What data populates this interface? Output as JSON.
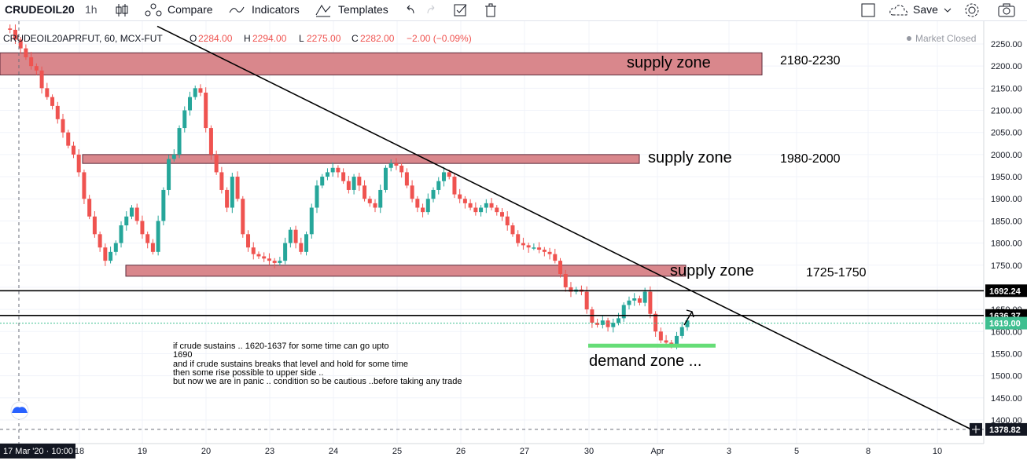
{
  "toolbar": {
    "symbol": "CRUDEOIL20",
    "interval": "1h",
    "compare_label": "Compare",
    "indicators_label": "Indicators",
    "templates_label": "Templates",
    "save_label": "Save"
  },
  "legend": {
    "title": "CRUDEOIL20APRFUT, 60, MCX-FUT",
    "open_label": "O",
    "open": "2284.00",
    "high_label": "H",
    "high": "2294.00",
    "low_label": "L",
    "low": "2275.00",
    "close_label": "C",
    "close": "2282.00",
    "change": "−2.00 (−0.09%)",
    "market_status": "Market Closed"
  },
  "colors": {
    "up": "#26a69a",
    "down": "#ef5350",
    "zone_fill": "#d9878c",
    "zone_stroke": "#5a2a3a",
    "demand": "#66dd77",
    "price_badge": "#3fbf90"
  },
  "annotations": {
    "zone1_label": "supply zone",
    "zone1_range": "2180-2230",
    "zone2_label": "supply zone",
    "zone2_range": "1980-2000",
    "zone3_label": "supply zone",
    "zone3_range": "1725-1750",
    "demand_label": "demand zone ...",
    "note_lines": [
      "if crude sustains .. 1620-1637 for some time can go upto",
      "1690",
      "and if crude sustains breaks that level and hold for some time",
      "then some rise possible to upper side ..",
      "but now we are in panic .. condition so be cautious ..before taking any trade"
    ]
  },
  "crosshair": {
    "date_label": "17 Mar '20 · 10:00",
    "price_label": "1378.82"
  },
  "chart_data": {
    "type": "candlestick",
    "y_axis_ticks": [
      1400,
      1450,
      1500,
      1550,
      1600,
      1650,
      1700,
      1750,
      1800,
      1850,
      1900,
      1950,
      2000,
      2050,
      2100,
      2150,
      2200,
      2250
    ],
    "ylim": [
      1370,
      2280
    ],
    "x_axis_ticks": [
      "18",
      "19",
      "20",
      "23",
      "24",
      "25",
      "26",
      "27",
      "30",
      "Apr",
      "3",
      "5",
      "8",
      "10"
    ],
    "horizontal_levels": [
      {
        "label": "1692.24",
        "value": 1692.24
      },
      {
        "label": "1636.37",
        "value": 1636.37
      },
      {
        "label": "1619.00",
        "value": 1619.0,
        "last_price": true
      }
    ],
    "supply_zones": [
      {
        "label": "supply zone",
        "range": "2180-2230",
        "low": 2180,
        "high": 2230
      },
      {
        "label": "supply zone",
        "range": "1980-2000",
        "low": 1980,
        "high": 2000
      },
      {
        "label": "supply zone",
        "range": "1725-1750",
        "low": 1725,
        "high": 1750
      }
    ],
    "demand_zone": {
      "label": "demand zone ...",
      "value": 1568
    },
    "trendline": {
      "from_value": 2290,
      "to_value": 1378
    },
    "close_path": [
      2285,
      2282,
      2260,
      2240,
      2220,
      2200,
      2190,
      2150,
      2130,
      2110,
      2080,
      2050,
      2020,
      2000,
      1960,
      1900,
      1860,
      1820,
      1790,
      1760,
      1780,
      1800,
      1840,
      1860,
      1880,
      1850,
      1820,
      1800,
      1780,
      1850,
      1920,
      1990,
      2000,
      2060,
      2100,
      2130,
      2150,
      2140,
      2060,
      2000,
      1960,
      1920,
      1880,
      1950,
      1900,
      1820,
      1790,
      1775,
      1770,
      1765,
      1760,
      1755,
      1760,
      1800,
      1830,
      1800,
      1780,
      1820,
      1880,
      1930,
      1950,
      1960,
      1970,
      1960,
      1940,
      1920,
      1950,
      1930,
      1900,
      1890,
      1880,
      1920,
      1970,
      1980,
      1975,
      1960,
      1930,
      1900,
      1880,
      1870,
      1900,
      1920,
      1940,
      1960,
      1950,
      1910,
      1900,
      1890,
      1880,
      1870,
      1880,
      1890,
      1880,
      1870,
      1860,
      1840,
      1820,
      1800,
      1795,
      1790,
      1790,
      1785,
      1780,
      1775,
      1760,
      1730,
      1700,
      1690,
      1695,
      1690,
      1650,
      1620,
      1615,
      1625,
      1610,
      1620,
      1630,
      1660,
      1670,
      1675,
      1665,
      1690,
      1640,
      1600,
      1580,
      1575,
      1572,
      1590,
      1610,
      1625
    ]
  }
}
